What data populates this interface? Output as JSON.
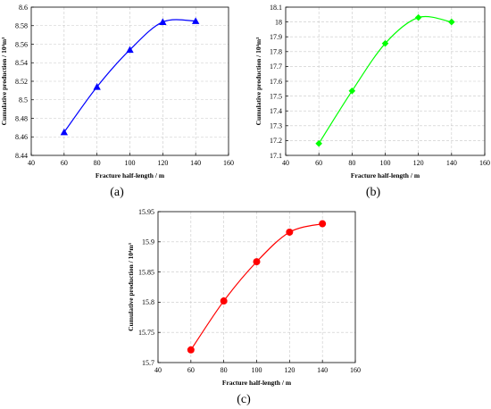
{
  "chart_data": [
    {
      "type": "scatter",
      "caption": "(a)",
      "xlabel": "Fracture half-length / m",
      "ylabel": "Cumulative production / 10⁴m³",
      "xlim": [
        40,
        160
      ],
      "ylim": [
        8.44,
        8.6
      ],
      "xticks": [
        40,
        60,
        80,
        100,
        120,
        140,
        160
      ],
      "yticks": [
        8.44,
        8.46,
        8.48,
        8.5,
        8.52,
        8.54,
        8.56,
        8.58,
        8.6
      ],
      "ytick_labels": [
        "8.44",
        "8.46",
        "8.48",
        "8.5",
        "8.52",
        "8.54",
        "8.56",
        "8.58",
        "8.6"
      ],
      "grid": true,
      "marker": "triangle",
      "color": "#0000ff",
      "x": [
        60,
        80,
        100,
        120,
        140
      ],
      "y": [
        8.465,
        8.514,
        8.554,
        8.584,
        8.585
      ]
    },
    {
      "type": "scatter",
      "caption": "(b)",
      "xlabel": "Fracture half-length / m",
      "ylabel": "Cumulative production / 10⁴m³",
      "xlim": [
        40,
        160
      ],
      "ylim": [
        17.1,
        18.1
      ],
      "xticks": [
        40,
        60,
        80,
        100,
        120,
        140,
        160
      ],
      "yticks": [
        17.1,
        17.2,
        17.3,
        17.4,
        17.5,
        17.6,
        17.7,
        17.8,
        17.9,
        18.0,
        18.1
      ],
      "ytick_labels": [
        "17.1",
        "17.2",
        "17.3",
        "17.4",
        "17.5",
        "17.6",
        "17.7",
        "17.8",
        "17.9",
        "18",
        "18.1"
      ],
      "grid": true,
      "marker": "diamond",
      "color": "#00ff00",
      "x": [
        60,
        80,
        100,
        120,
        140
      ],
      "y": [
        17.18,
        17.535,
        17.855,
        18.03,
        18.0
      ]
    },
    {
      "type": "scatter",
      "caption": "(c)",
      "xlabel": "Fracture half-length / m",
      "ylabel": "Cumulative production / 10⁴m³",
      "xlim": [
        40,
        160
      ],
      "ylim": [
        15.7,
        15.95
      ],
      "xticks": [
        40,
        60,
        80,
        100,
        120,
        140,
        160
      ],
      "yticks": [
        15.7,
        15.75,
        15.8,
        15.85,
        15.9,
        15.95
      ],
      "ytick_labels": [
        "15.7",
        "15.75",
        "15.8",
        "15.85",
        "15.9",
        "15.95"
      ],
      "grid": true,
      "marker": "circle",
      "color": "#ff0000",
      "x": [
        60,
        80,
        100,
        120,
        140
      ],
      "y": [
        15.721,
        15.802,
        15.867,
        15.916,
        15.93
      ]
    }
  ]
}
